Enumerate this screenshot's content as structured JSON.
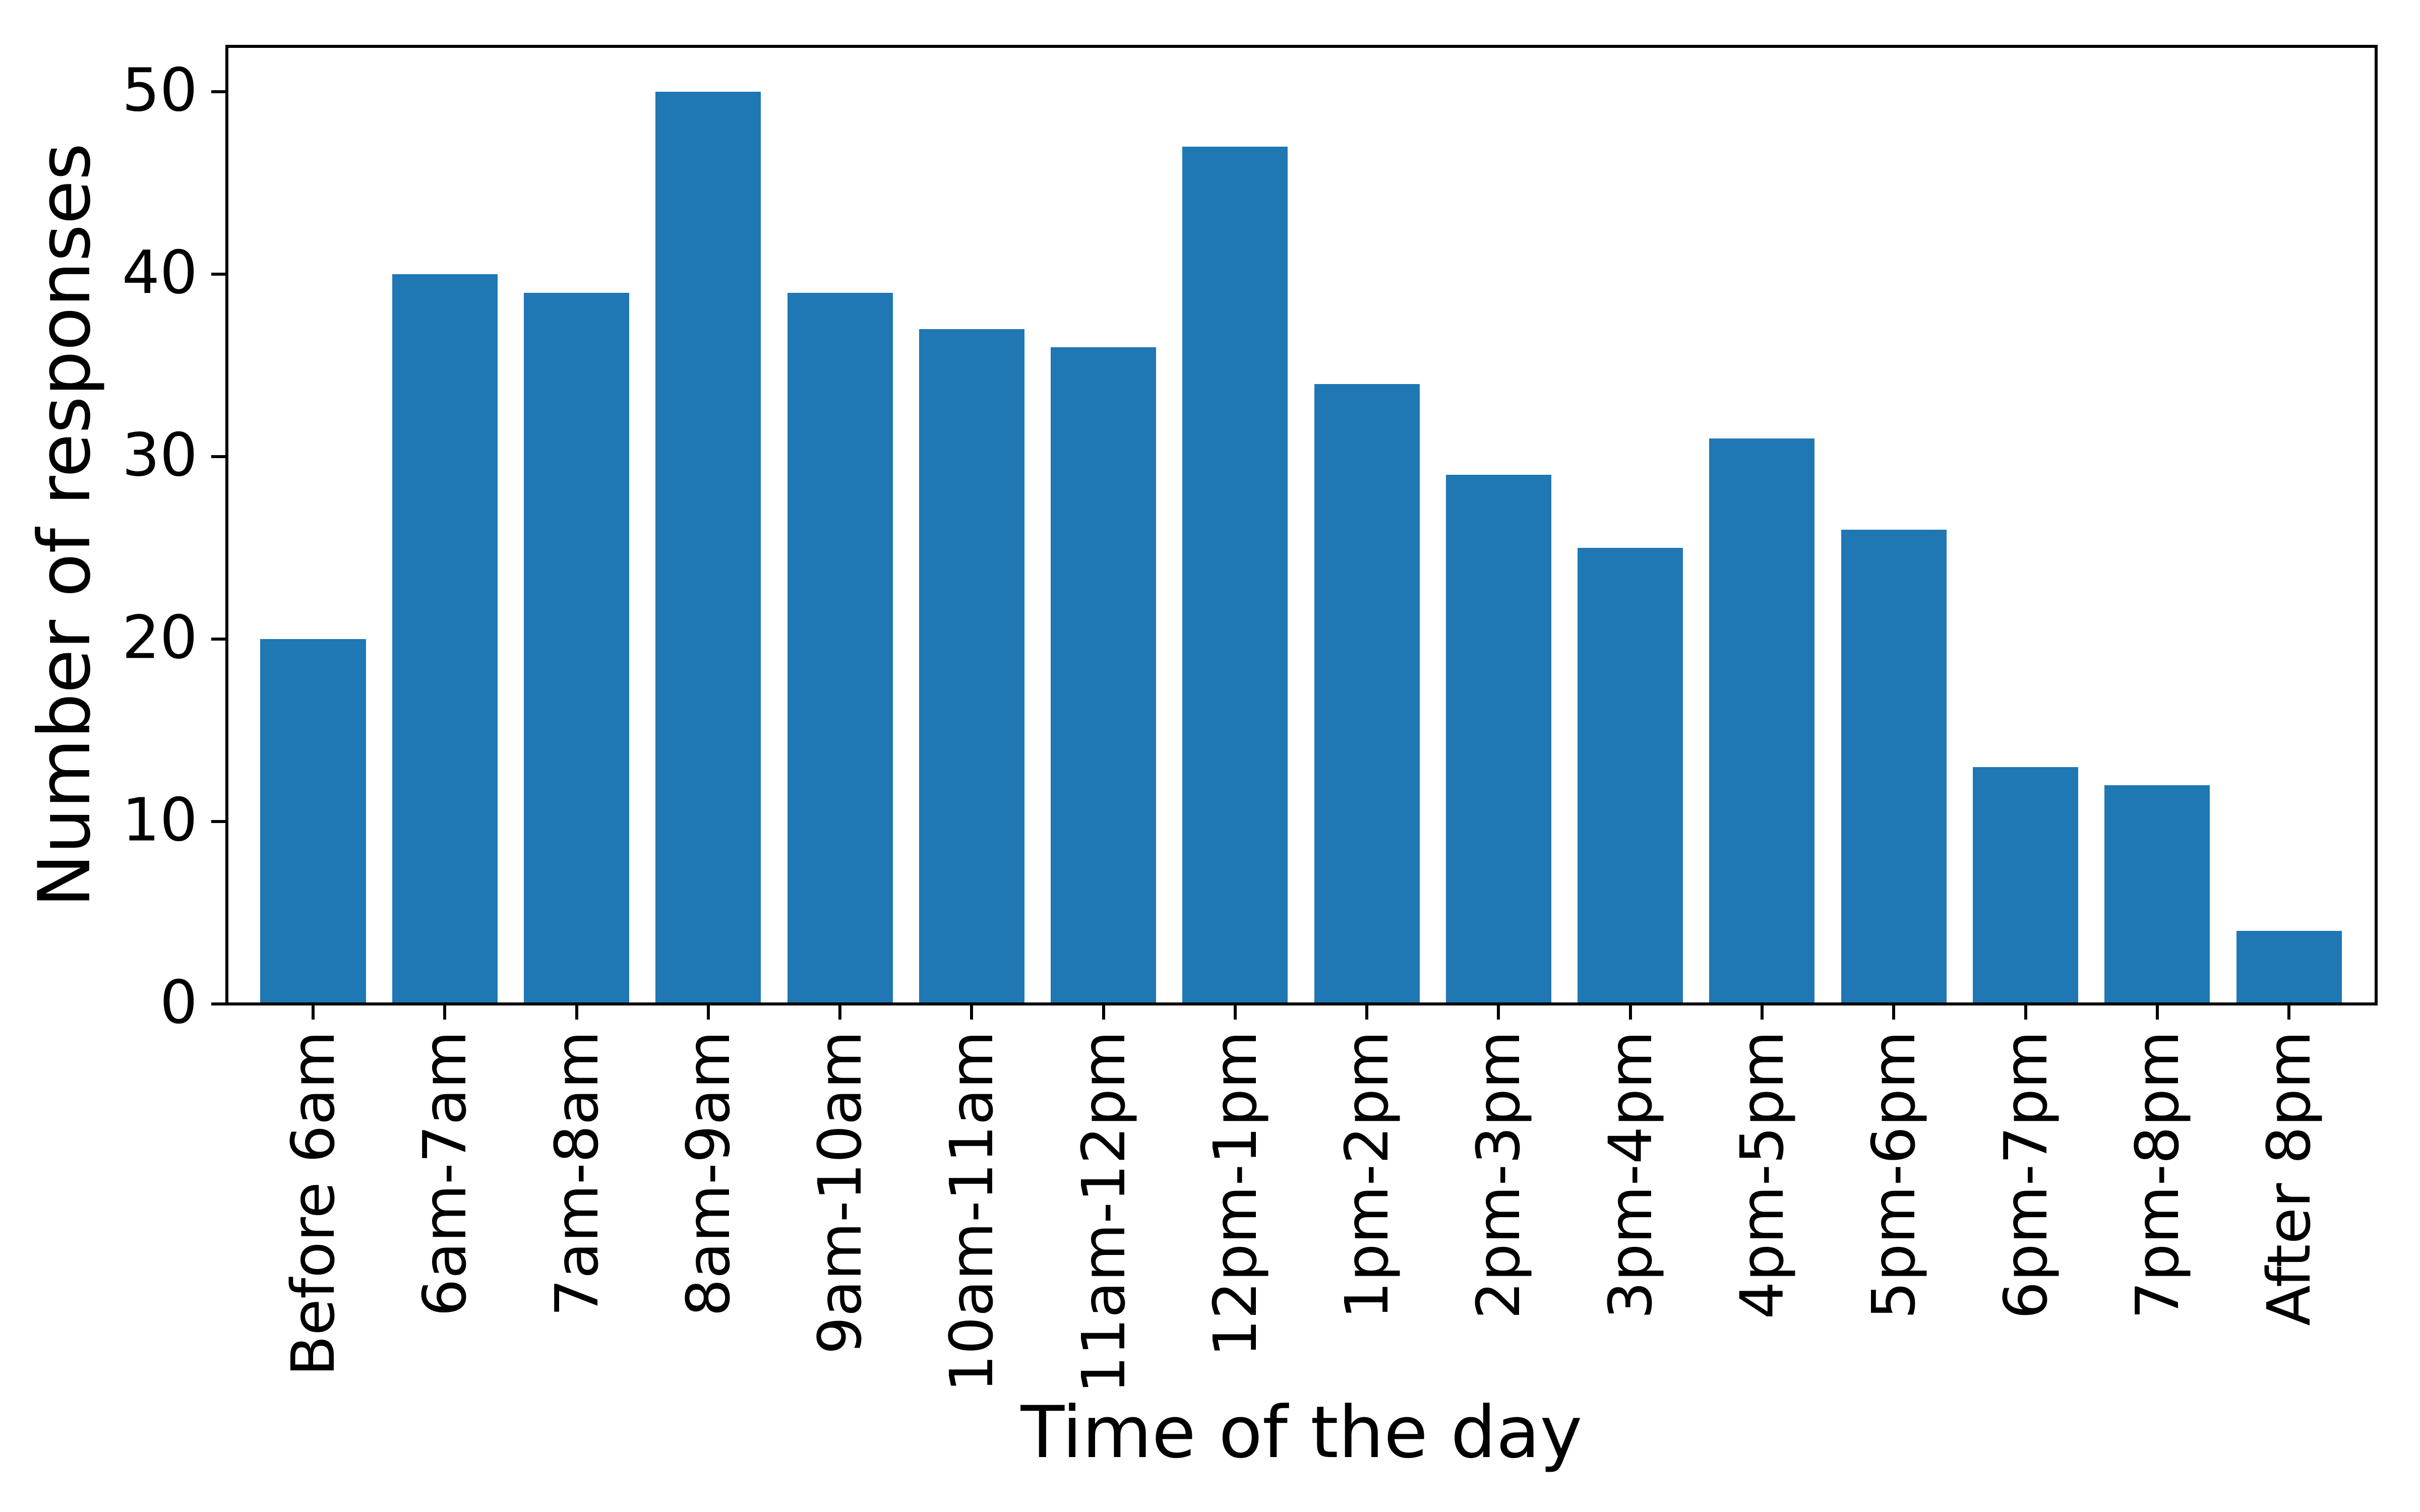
{
  "chart_data": {
    "type": "bar",
    "xlabel": "Time of the day",
    "ylabel": "Number of responses",
    "categories": [
      "Before 6am",
      "6am-7am",
      "7am-8am",
      "8am-9am",
      "9am-10am",
      "10am-11am",
      "11am-12pm",
      "12pm-1pm",
      "1pm-2pm",
      "2pm-3pm",
      "3pm-4pm",
      "4pm-5pm",
      "5pm-6pm",
      "6pm-7pm",
      "7pm-8pm",
      "After 8pm"
    ],
    "values": [
      20,
      40,
      39,
      50,
      39,
      37,
      36,
      47,
      34,
      29,
      25,
      31,
      26,
      13,
      12,
      4
    ],
    "yticks": [
      0,
      10,
      20,
      30,
      40,
      50
    ],
    "ylim": [
      0,
      52.5
    ],
    "bar_color": "#1f77b4",
    "axis_color": "#000000",
    "bar_width_fraction": 0.8,
    "grid": false,
    "legend": "none",
    "tick_direction": "out",
    "x_tick_label_rotation_deg": 90
  }
}
